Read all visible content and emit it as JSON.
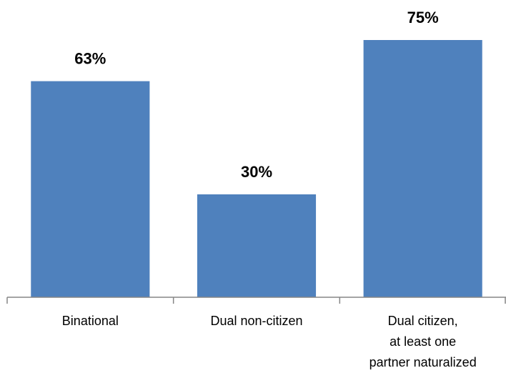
{
  "chart_data": {
    "type": "bar",
    "categories": [
      [
        "Binational"
      ],
      [
        "Dual non-citizen"
      ],
      [
        "Dual citizen,",
        "at least one",
        "partner naturalized"
      ]
    ],
    "values": [
      63,
      30,
      75
    ],
    "data_labels": [
      "63%",
      "30%",
      "75%"
    ],
    "unit": "%",
    "ylim": [
      0,
      85
    ],
    "bar_color": "#4f81bd",
    "axis_color": "#868686",
    "grid": false,
    "legend": "none"
  }
}
